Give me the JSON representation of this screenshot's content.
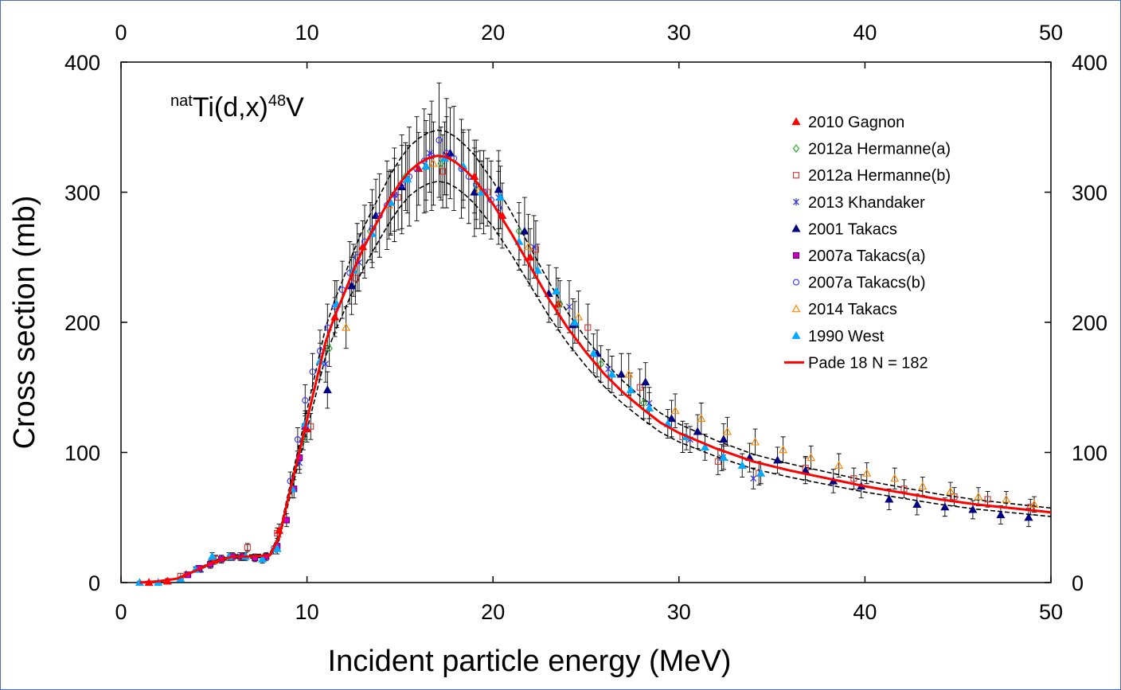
{
  "chart_data": {
    "type": "scatter",
    "title_prefix": "nat",
    "title_main": "Ti(d,x)",
    "title_sup": "48",
    "title_suffix": "V",
    "xlabel": "Incident particle energy (MeV)",
    "ylabel": "Cross section (mb)",
    "xlim": [
      0,
      50
    ],
    "ylim": [
      0,
      400
    ],
    "x_ticks": [
      "0",
      "10",
      "20",
      "30",
      "40",
      "50"
    ],
    "y_ticks": [
      "0",
      "100",
      "200",
      "300",
      "400"
    ],
    "grid": false,
    "legend_position": "top-right",
    "colors": {
      "fit": "#ff0000",
      "band": "#000000",
      "error_bars": "#000000"
    },
    "fit": {
      "name": "Pade 18 N = 182",
      "x": [
        1,
        2,
        3,
        4,
        5,
        6,
        7,
        8,
        8.5,
        9,
        9.5,
        10,
        10.5,
        11,
        11.5,
        12,
        12.5,
        13,
        13.5,
        14,
        14.5,
        15,
        15.5,
        16,
        16.5,
        17,
        17.5,
        18,
        18.5,
        19,
        20,
        21,
        22,
        23,
        24,
        25,
        26,
        27,
        28,
        29,
        30,
        32,
        34,
        36,
        38,
        40,
        42,
        44,
        46,
        48,
        50
      ],
      "y": [
        0,
        1,
        3,
        9,
        16,
        20,
        20,
        21,
        35,
        65,
        95,
        125,
        155,
        185,
        205,
        222,
        240,
        256,
        270,
        283,
        296,
        307,
        316,
        322,
        326,
        328,
        327,
        323,
        317,
        310,
        291,
        268,
        243,
        218,
        196,
        177,
        160,
        146,
        134,
        123,
        115,
        103,
        93,
        86,
        80,
        74,
        69,
        64,
        60,
        57,
        54
      ],
      "band_delta": 0.06
    },
    "series": [
      {
        "name": "2010 Gagnon",
        "marker": "triangle-filled",
        "color": "#ff0000",
        "x": [
          1.5,
          2.5,
          3.5,
          5,
          6.5,
          8.5,
          10,
          11.5,
          13,
          14.5,
          16,
          17.5,
          19,
          20.5,
          22,
          23.5
        ],
        "y": [
          0,
          1,
          6,
          17,
          20,
          40,
          118,
          204,
          258,
          292,
          318,
          328,
          312,
          282,
          250,
          214
        ],
        "err": [
          1,
          2,
          2,
          3,
          3,
          5,
          10,
          15,
          20,
          25,
          28,
          30,
          28,
          25,
          22,
          20
        ]
      },
      {
        "name": "2012a Hermanne(a)",
        "marker": "diamond-open",
        "color": "#33aa33",
        "x": [
          9.8,
          11.2,
          13.4,
          15.3,
          17.2,
          19.1,
          21.4,
          23.6,
          25.8,
          28.1
        ],
        "y": [
          110,
          180,
          270,
          312,
          322,
          305,
          270,
          214,
          168,
          138
        ],
        "err": [
          8,
          14,
          22,
          26,
          28,
          26,
          22,
          18,
          14,
          12
        ]
      },
      {
        "name": "2012a Hermanne(b)",
        "marker": "square-open",
        "color": "#dd3333",
        "x": [
          3.2,
          5.1,
          6.8,
          8.4,
          10.2,
          12.6,
          14.9,
          17.3,
          19.7,
          22.3,
          25.1,
          27.9,
          30.2,
          32.1,
          34.3,
          36.8,
          39.4,
          42.1,
          44.8,
          46.6,
          48.9
        ],
        "y": [
          5,
          18,
          27,
          38,
          120,
          234,
          296,
          316,
          300,
          256,
          196,
          150,
          112,
          93,
          84,
          88,
          80,
          72,
          66,
          64,
          58
        ],
        "err": [
          2,
          3,
          3,
          4,
          10,
          20,
          25,
          28,
          26,
          22,
          18,
          14,
          12,
          10,
          9,
          9,
          8,
          7,
          7,
          6,
          6
        ]
      },
      {
        "name": "2013 Khandaker",
        "marker": "asterisk",
        "color": "#3333cc",
        "x": [
          4.3,
          6.4,
          8.2,
          9.6,
          11.0,
          12.8,
          14.7,
          16.6,
          18.4,
          20.3,
          22.2,
          24.1,
          26.2,
          28.4,
          30.6,
          32.3,
          34.0
        ],
        "y": [
          10,
          20,
          25,
          92,
          168,
          246,
          298,
          330,
          318,
          296,
          258,
          212,
          164,
          138,
          110,
          96,
          80
        ],
        "err": [
          2,
          3,
          3,
          8,
          14,
          22,
          28,
          30,
          30,
          28,
          24,
          20,
          15,
          12,
          10,
          10,
          8
        ]
      },
      {
        "name": "2001 Takacs",
        "marker": "triangle-filled",
        "color": "#000080",
        "x": [
          11.1,
          12.4,
          13.7,
          15.1,
          16.4,
          17.7,
          19.0,
          20.3,
          21.7,
          23.0,
          24.3,
          25.6,
          26.9,
          28.2,
          29.6,
          31.0,
          32.4,
          33.8,
          35.3,
          36.8,
          38.3,
          39.8,
          41.3,
          42.8,
          44.3,
          45.8,
          47.3,
          48.8
        ],
        "y": [
          148,
          228,
          282,
          304,
          320,
          330,
          300,
          302,
          270,
          222,
          198,
          176,
          160,
          154,
          126,
          116,
          110,
          96,
          94,
          86,
          78,
          74,
          64,
          60,
          58,
          56,
          52,
          50
        ],
        "err": [
          14,
          22,
          28,
          32,
          35,
          35,
          34,
          30,
          26,
          22,
          20,
          18,
          16,
          15,
          14,
          13,
          12,
          11,
          10,
          10,
          9,
          9,
          8,
          8,
          7,
          7,
          7,
          7
        ]
      },
      {
        "name": "2007a Takacs(a)",
        "marker": "square-filled",
        "color": "#cc00cc",
        "x": [
          3.6,
          4.2,
          4.8,
          5.4,
          6.0,
          6.6,
          7.2,
          7.8,
          8.4,
          8.9,
          9.3,
          9.6,
          9.9
        ],
        "y": [
          6,
          11,
          14,
          18,
          20,
          20,
          19,
          20,
          28,
          48,
          72,
          96,
          120
        ],
        "err": [
          2,
          2,
          3,
          3,
          3,
          3,
          3,
          3,
          4,
          5,
          7,
          9,
          10
        ]
      },
      {
        "name": "2007a Takacs(b)",
        "marker": "circle-open",
        "color": "#3333ff",
        "x": [
          9.1,
          9.5,
          9.9,
          10.3,
          10.7,
          11.1,
          11.5,
          11.9,
          12.3,
          12.7,
          13.1,
          13.5,
          13.9,
          14.3,
          14.7,
          15.1,
          15.5,
          15.9,
          16.3,
          16.7,
          17.1,
          17.5,
          17.9,
          18.3,
          18.7,
          19.1,
          19.5,
          19.9,
          20.3
        ],
        "y": [
          78,
          110,
          140,
          162,
          178,
          196,
          212,
          225,
          238,
          250,
          262,
          272,
          282,
          290,
          298,
          306,
          312,
          318,
          324,
          328,
          340,
          330,
          326,
          318,
          312,
          306,
          300,
          294,
          288
        ],
        "err": [
          7,
          9,
          12,
          14,
          16,
          18,
          20,
          22,
          24,
          26,
          28,
          30,
          32,
          34,
          36,
          38,
          38,
          40,
          40,
          42,
          44,
          42,
          40,
          38,
          36,
          34,
          32,
          30,
          28
        ]
      },
      {
        "name": "2014 Takacs",
        "marker": "triangle-open",
        "color": "#ff8800",
        "x": [
          12.1,
          14.4,
          16.8,
          19.3,
          21.9,
          24.6,
          27.3,
          29.8,
          31.2,
          32.6,
          34.1,
          35.6,
          37.1,
          38.6,
          40.1,
          41.6,
          43.1,
          44.6,
          46.1,
          47.6,
          49.1
        ],
        "y": [
          196,
          290,
          322,
          302,
          258,
          204,
          160,
          132,
          126,
          116,
          108,
          102,
          96,
          90,
          84,
          80,
          74,
          70,
          66,
          64,
          60
        ],
        "err": [
          16,
          26,
          32,
          30,
          25,
          20,
          16,
          13,
          12,
          11,
          10,
          10,
          9,
          9,
          8,
          8,
          7,
          7,
          7,
          6,
          6
        ]
      },
      {
        "name": "1990 West",
        "marker": "triangle-filled",
        "color": "#00aaff",
        "x": [
          1.0,
          2.0,
          3.2,
          4.0,
          4.9,
          5.8,
          6.7,
          7.6,
          8.4,
          9.2,
          9.9,
          10.7,
          11.6,
          12.5,
          13.5,
          14.5,
          15.4,
          16.4,
          17.4,
          18.4,
          19.4,
          20.4,
          21.4,
          22.4,
          23.4,
          24.4,
          25.4,
          26.4,
          27.4,
          28.4,
          29.4,
          30.4,
          31.4,
          32.4,
          33.4,
          34.4
        ],
        "y": [
          0,
          0,
          3,
          10,
          20,
          20,
          20,
          18,
          26,
          72,
          122,
          170,
          214,
          240,
          268,
          292,
          310,
          320,
          326,
          320,
          300,
          296,
          262,
          240,
          224,
          200,
          176,
          160,
          148,
          134,
          122,
          112,
          104,
          96,
          90,
          84
        ],
        "err": [
          1,
          1,
          1,
          2,
          3,
          3,
          3,
          3,
          4,
          7,
          10,
          14,
          18,
          20,
          22,
          24,
          26,
          26,
          28,
          26,
          24,
          24,
          22,
          20,
          18,
          16,
          15,
          14,
          13,
          12,
          11,
          10,
          10,
          9,
          9,
          8
        ]
      }
    ]
  }
}
